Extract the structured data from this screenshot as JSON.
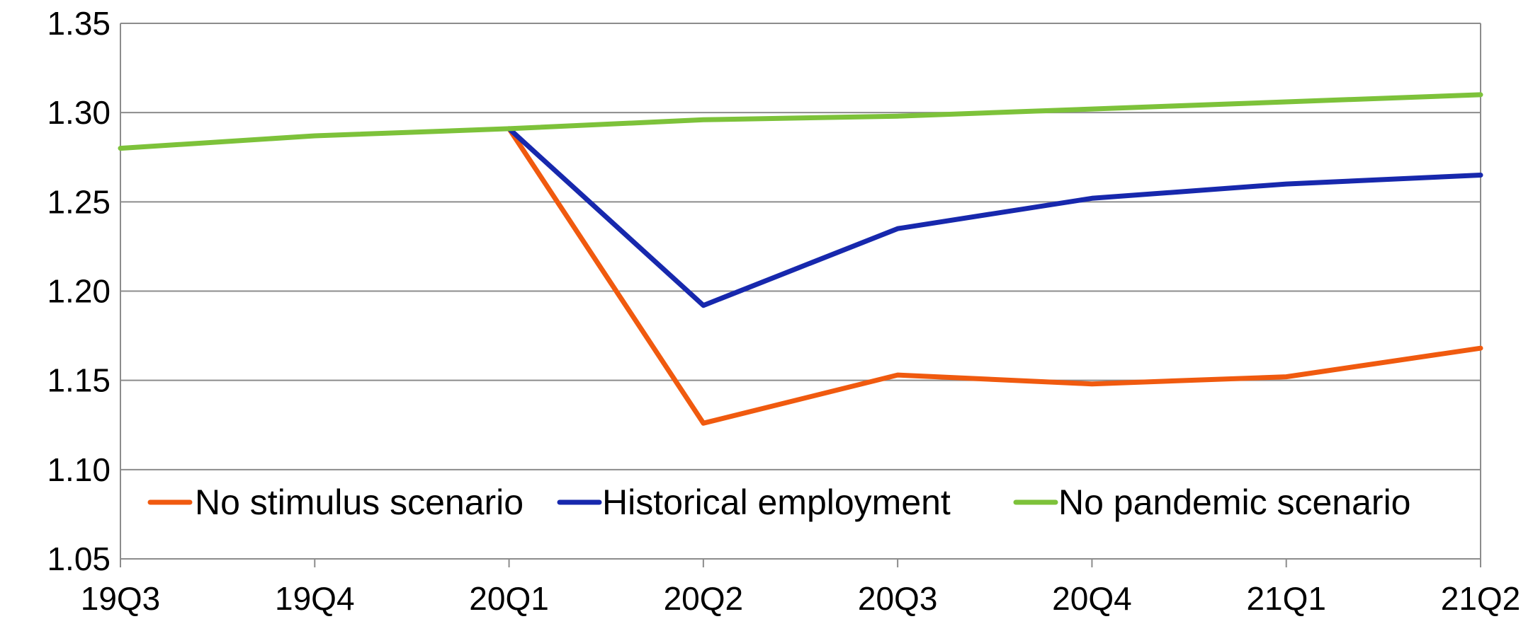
{
  "chart_data": {
    "type": "line",
    "title": "",
    "xlabel": "",
    "ylabel": "",
    "categories": [
      "19Q3",
      "19Q4",
      "20Q1",
      "20Q2",
      "20Q3",
      "20Q4",
      "21Q1",
      "21Q2"
    ],
    "ylim": [
      1.05,
      1.35
    ],
    "yticks": [
      "1.05",
      "1.10",
      "1.15",
      "1.20",
      "1.25",
      "1.30",
      "1.35"
    ],
    "grid": true,
    "legend_position": "bottom",
    "series": [
      {
        "name": "No stimulus scenario",
        "color": "#f05a0f",
        "x": [
          "20Q1",
          "20Q2",
          "20Q3",
          "20Q4",
          "21Q1",
          "21Q2"
        ],
        "values": [
          1.291,
          1.126,
          1.153,
          1.148,
          1.152,
          1.168
        ]
      },
      {
        "name": "Historical employment",
        "color": "#1728ad",
        "x": [
          "20Q1",
          "20Q2",
          "20Q3",
          "20Q4",
          "21Q1",
          "21Q2"
        ],
        "values": [
          1.291,
          1.192,
          1.235,
          1.252,
          1.26,
          1.265
        ]
      },
      {
        "name": "No pandemic scenario",
        "color": "#7dc23a",
        "x": [
          "19Q3",
          "19Q4",
          "20Q1",
          "20Q2",
          "20Q3",
          "20Q4",
          "21Q1",
          "21Q2"
        ],
        "values": [
          1.28,
          1.287,
          1.291,
          1.296,
          1.298,
          1.302,
          1.306,
          1.31
        ]
      }
    ]
  }
}
